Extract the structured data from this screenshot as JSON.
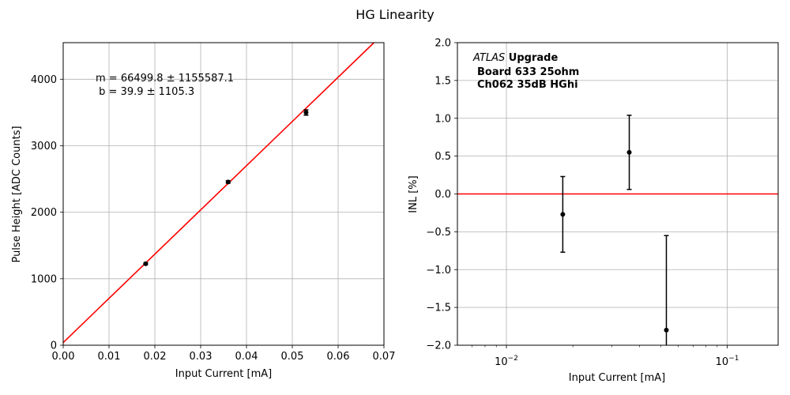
{
  "figure": {
    "title": "HG Linearity"
  },
  "chart_data": [
    {
      "type": "scatter",
      "xlabel": "Input Current [mA]",
      "ylabel": "Pulse Height [ADC Counts]",
      "xlim": [
        0.0,
        0.07
      ],
      "ylim": [
        0,
        4550
      ],
      "x_ticks": [
        "0.00",
        "0.01",
        "0.02",
        "0.03",
        "0.04",
        "0.05",
        "0.06",
        "0.07"
      ],
      "y_ticks": [
        "0",
        "1000",
        "2000",
        "3000",
        "4000"
      ],
      "grid": true,
      "points": {
        "x": [
          0.018,
          0.036,
          0.053
        ],
        "y": [
          1225,
          2455,
          3500
        ],
        "yerr": [
          12,
          18,
          40
        ],
        "color": "#000000"
      },
      "fit_line": {
        "slope": 66499.8,
        "intercept": 39.9,
        "color": "#ff0000"
      },
      "annotation": {
        "line1": "m = 66499.8 ± 1155587.1",
        "line2": " b = 39.9 ± 1105.3"
      }
    },
    {
      "type": "scatter",
      "xlabel": "Input Current [mA]",
      "ylabel": "INL [%]",
      "xscale": "log",
      "xlim": [
        0.006,
        0.17
      ],
      "ylim": [
        -2.0,
        2.0
      ],
      "x_ticks_major": [
        0.01,
        0.1
      ],
      "x_tick_labels": {
        "base": "10",
        "exponents": [
          "−2",
          "−1"
        ]
      },
      "y_ticks": [
        "−2.0",
        "−1.5",
        "−1.0",
        "−0.5",
        "0.0",
        "0.5",
        "1.0",
        "1.5",
        "2.0"
      ],
      "grid": true,
      "points": {
        "x": [
          0.018,
          0.036,
          0.053
        ],
        "y": [
          -0.27,
          0.55,
          -1.8
        ],
        "yerr": [
          0.5,
          0.49,
          1.25
        ],
        "color": "#000000"
      },
      "reference_line": {
        "y": 0.0,
        "color": "#ff0000"
      },
      "annotation": {
        "experiment": "ATLAS",
        "experiment_suffix": " Upgrade",
        "line2": "Board 633 25ohm",
        "line3": "Ch062 35dB HGhi"
      }
    }
  ]
}
